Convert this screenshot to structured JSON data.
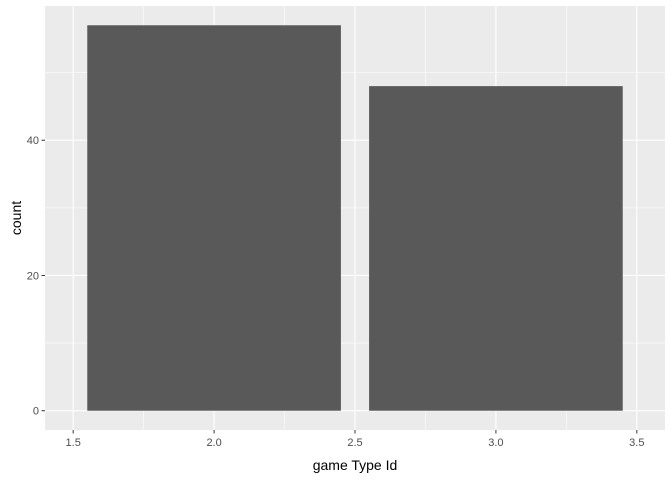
{
  "chart_data": {
    "type": "bar",
    "x": [
      2.0,
      3.0
    ],
    "values": [
      57,
      48
    ],
    "bar_width": 0.9,
    "xlabel": "game Type Id",
    "ylabel": "count",
    "xlim": [
      1.5,
      3.5
    ],
    "ylim": [
      0,
      57
    ],
    "x_ticks": [
      1.5,
      2.0,
      2.5,
      3.0,
      3.5
    ],
    "x_tick_labels": [
      "1.5",
      "2.0",
      "2.5",
      "3.0",
      "3.5"
    ],
    "y_ticks": [
      0,
      20,
      40
    ],
    "y_tick_labels": [
      "0",
      "20",
      "40"
    ],
    "grid": true,
    "legend": "none",
    "colors": {
      "panel_background": "#ebebeb",
      "grid_major": "#ffffff",
      "bar_fill": "#595959",
      "tick_label": "#4d4d4d",
      "axis_title": "#000000"
    }
  }
}
